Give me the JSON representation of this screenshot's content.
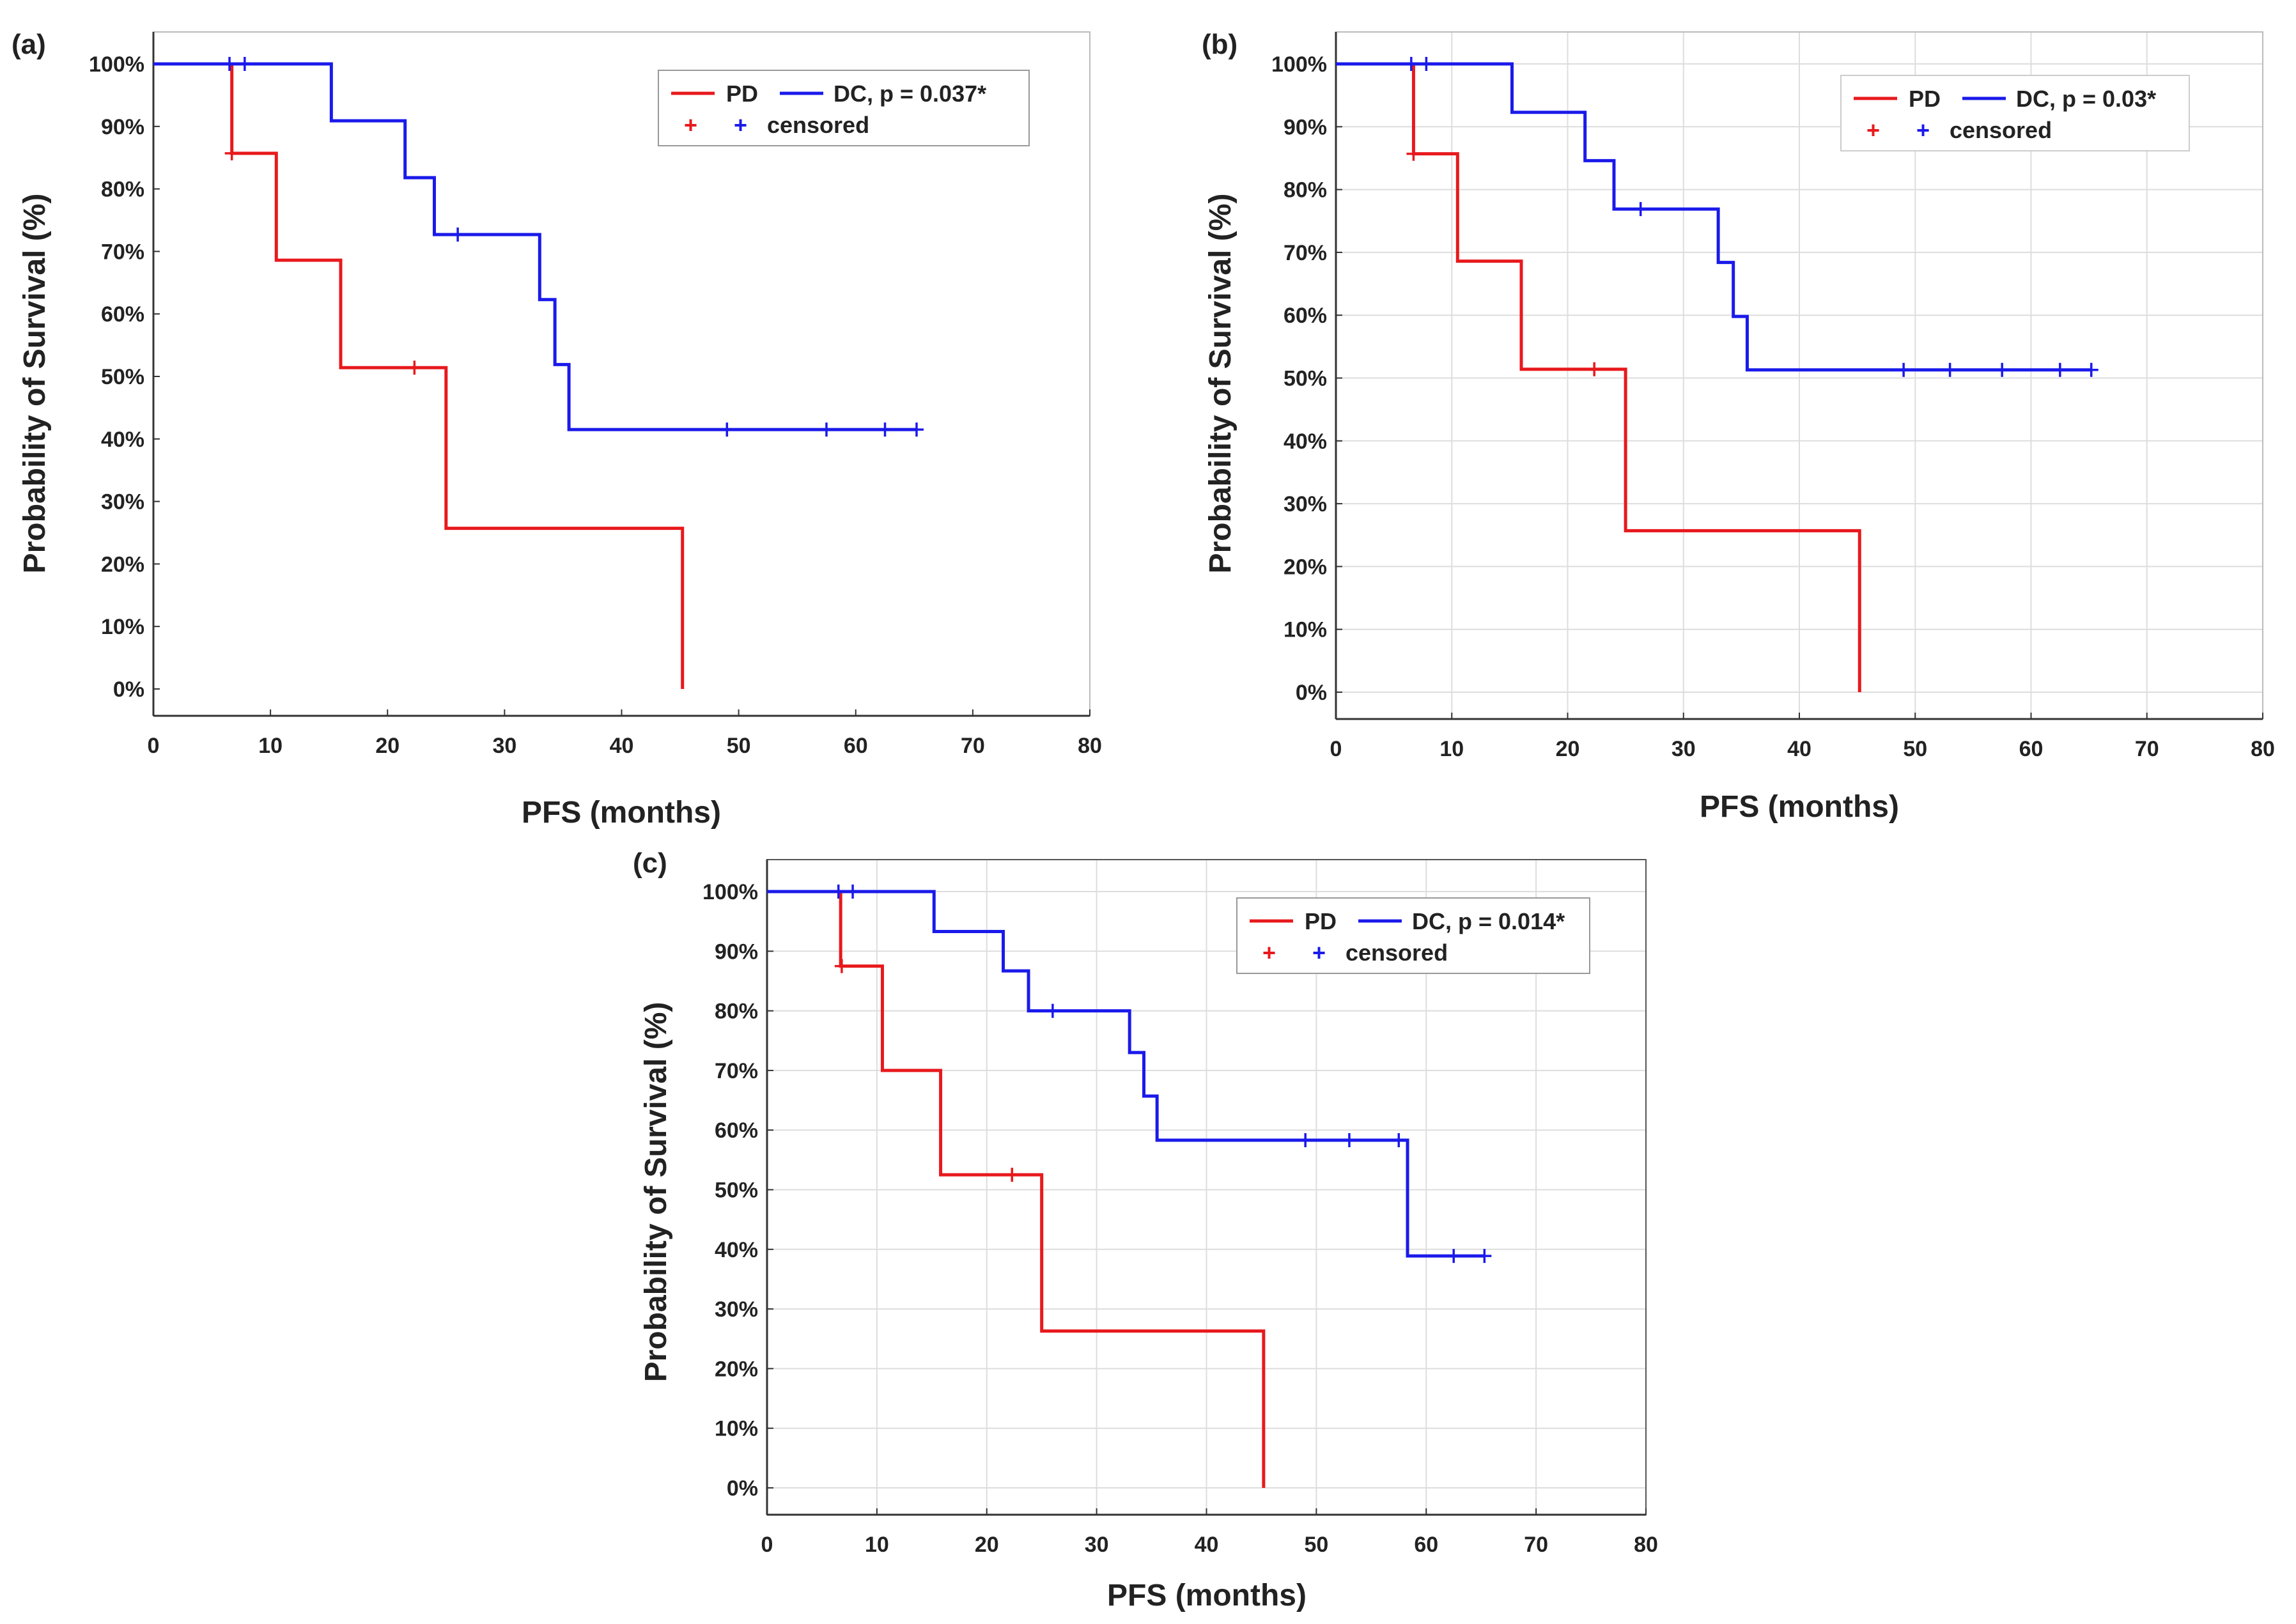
{
  "chart_data": [
    {
      "type": "line",
      "panel_label": "(a)",
      "xlabel": "PFS (months)",
      "ylabel": "Probability of Survival (%)",
      "xlim": [
        0,
        80
      ],
      "ylim": [
        0,
        100
      ],
      "xticks": [
        "0",
        "10",
        "20",
        "30",
        "40",
        "50",
        "60",
        "70",
        "80"
      ],
      "yticks": [
        "0%",
        "10%",
        "20%",
        "30%",
        "40%",
        "50%",
        "60%",
        "70%",
        "80%",
        "90%",
        "100%"
      ],
      "grid": false,
      "legend": {
        "position": "top-right",
        "series_labels": [
          "PD",
          "DC, p = 0.037*"
        ],
        "censored_label": "censored"
      },
      "series": [
        {
          "name": "PD",
          "color": "#e8191c",
          "x": [
            0,
            6.7,
            10.5,
            16,
            25,
            45.2
          ],
          "y": [
            100,
            85.7,
            68.6,
            51.4,
            25.7,
            0
          ],
          "censored": [
            [
              6.7,
              85.7
            ],
            [
              22.3,
              51.4
            ]
          ]
        },
        {
          "name": "DC",
          "color": "#1a1aeb",
          "x": [
            0,
            15.2,
            21.5,
            24,
            33,
            34.3,
            35.5
          ],
          "y": [
            100,
            90.9,
            81.8,
            72.7,
            62.3,
            51.9,
            41.5
          ],
          "end_x": 65.2,
          "censored": [
            [
              6.5,
              100
            ],
            [
              7.8,
              100
            ],
            [
              26,
              72.7
            ],
            [
              49,
              41.5
            ],
            [
              57.5,
              41.5
            ],
            [
              62.5,
              41.5
            ],
            [
              65.2,
              41.5
            ]
          ]
        }
      ]
    },
    {
      "type": "line",
      "panel_label": "(b)",
      "xlabel": "PFS (months)",
      "ylabel": "Probability of Survival (%)",
      "xlim": [
        0,
        80
      ],
      "ylim": [
        0,
        100
      ],
      "xticks": [
        "0",
        "10",
        "20",
        "30",
        "40",
        "50",
        "60",
        "70",
        "80"
      ],
      "yticks": [
        "0%",
        "10%",
        "20%",
        "30%",
        "40%",
        "50%",
        "60%",
        "70%",
        "80%",
        "90%",
        "100%"
      ],
      "grid": true,
      "legend": {
        "position": "top-right",
        "series_labels": [
          "PD",
          "DC, p = 0.03*"
        ],
        "censored_label": "censored"
      },
      "series": [
        {
          "name": "PD",
          "color": "#e8191c",
          "x": [
            0,
            6.7,
            10.5,
            16,
            25,
            45.2
          ],
          "y": [
            100,
            85.7,
            68.6,
            51.4,
            25.7,
            0
          ],
          "censored": [
            [
              6.7,
              85.7
            ],
            [
              22.3,
              51.4
            ]
          ]
        },
        {
          "name": "DC",
          "color": "#1a1aeb",
          "x": [
            0,
            15.2,
            21.5,
            24,
            33,
            34.3,
            35.5
          ],
          "y": [
            100,
            92.3,
            84.6,
            76.9,
            68.4,
            59.8,
            51.3
          ],
          "end_x": 65.2,
          "censored": [
            [
              6.5,
              100
            ],
            [
              7.8,
              100
            ],
            [
              26.3,
              76.9
            ],
            [
              49,
              51.3
            ],
            [
              53,
              51.3
            ],
            [
              57.5,
              51.3
            ],
            [
              62.5,
              51.3
            ],
            [
              65.2,
              51.3
            ]
          ]
        }
      ]
    },
    {
      "type": "line",
      "panel_label": "(c)",
      "xlabel": "PFS (months)",
      "ylabel": "Probability of Survival (%)",
      "xlim": [
        0,
        80
      ],
      "ylim": [
        0,
        100
      ],
      "xticks": [
        "0",
        "10",
        "20",
        "30",
        "40",
        "50",
        "60",
        "70",
        "80"
      ],
      "yticks": [
        "0%",
        "10%",
        "20%",
        "30%",
        "40%",
        "50%",
        "60%",
        "70%",
        "80%",
        "90%",
        "100%"
      ],
      "grid": true,
      "legend": {
        "position": "top-right",
        "series_labels": [
          "PD",
          "DC, p = 0.014*"
        ],
        "censored_label": "censored"
      },
      "series": [
        {
          "name": "PD",
          "color": "#e8191c",
          "x": [
            0,
            6.7,
            10.5,
            15.8,
            25,
            45.2
          ],
          "y": [
            100,
            87.5,
            70,
            52.5,
            26.3,
            0
          ],
          "censored": [
            [
              6.8,
              87.5
            ],
            [
              22.3,
              52.5
            ]
          ]
        },
        {
          "name": "DC",
          "color": "#1a1aeb",
          "x": [
            0,
            15.2,
            21.5,
            23.8,
            33,
            34.3,
            35.5,
            58.3
          ],
          "y": [
            100,
            93.3,
            86.7,
            80,
            73,
            65.7,
            58.3,
            38.9
          ],
          "end_x": 65.3,
          "censored": [
            [
              6.5,
              100
            ],
            [
              7.8,
              100
            ],
            [
              26,
              80
            ],
            [
              49,
              58.3
            ],
            [
              53,
              58.3
            ],
            [
              57.5,
              58.3
            ],
            [
              62.5,
              38.9
            ],
            [
              65.3,
              38.9
            ]
          ]
        }
      ]
    }
  ]
}
